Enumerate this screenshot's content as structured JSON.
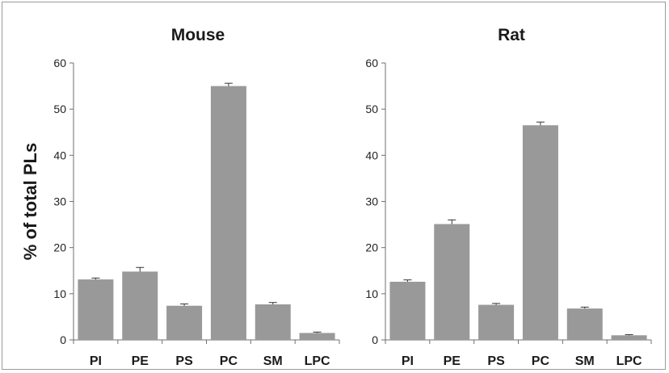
{
  "chart_data": [
    {
      "type": "bar",
      "title": "Mouse",
      "ylabel": "% of total PLs",
      "categories": [
        "PI",
        "PE",
        "PS",
        "PC",
        "SM",
        "LPC"
      ],
      "values": [
        13.1,
        14.8,
        7.4,
        55.0,
        7.7,
        1.5
      ],
      "errors": [
        0.3,
        0.9,
        0.4,
        0.6,
        0.4,
        0.2
      ],
      "ylim": [
        0,
        60
      ],
      "yticks": [
        0,
        10,
        20,
        30,
        40,
        50,
        60
      ],
      "color": "#999999",
      "grid": false
    },
    {
      "type": "bar",
      "title": "Rat",
      "ylabel": "",
      "categories": [
        "PI",
        "PE",
        "PS",
        "PC",
        "SM",
        "LPC"
      ],
      "values": [
        12.6,
        25.1,
        7.6,
        46.5,
        6.8,
        1.0
      ],
      "errors": [
        0.4,
        0.9,
        0.3,
        0.7,
        0.3,
        0.15
      ],
      "ylim": [
        0,
        60
      ],
      "yticks": [
        0,
        10,
        20,
        30,
        40,
        50,
        60
      ],
      "color": "#999999",
      "grid": false
    }
  ]
}
